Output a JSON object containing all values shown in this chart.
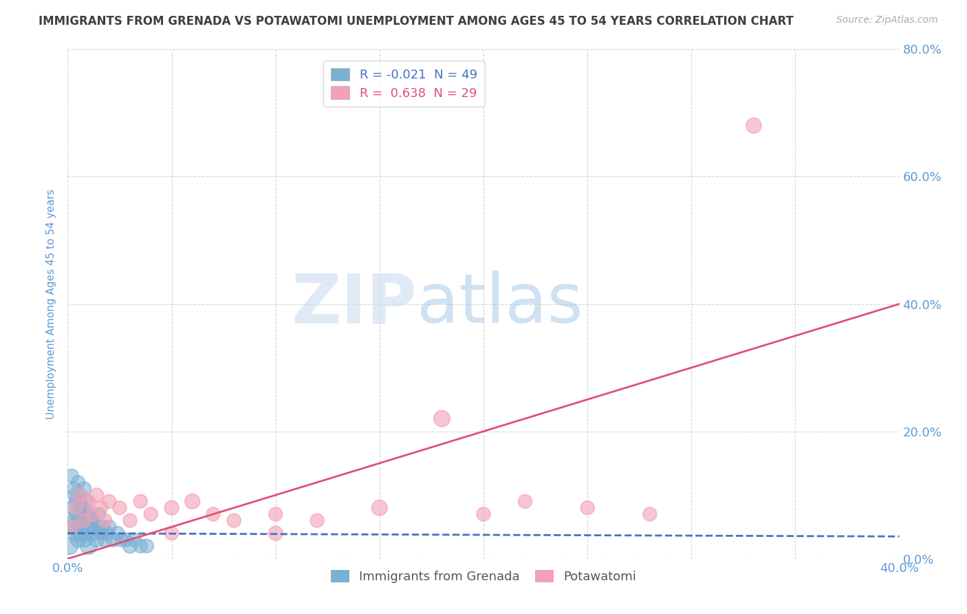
{
  "title": "IMMIGRANTS FROM GRENADA VS POTAWATOMI UNEMPLOYMENT AMONG AGES 45 TO 54 YEARS CORRELATION CHART",
  "source": "Source: ZipAtlas.com",
  "ylabel": "Unemployment Among Ages 45 to 54 years",
  "xlim": [
    0.0,
    0.4
  ],
  "ylim": [
    0.0,
    0.8
  ],
  "xticks": [
    0.0,
    0.05,
    0.1,
    0.15,
    0.2,
    0.25,
    0.3,
    0.35,
    0.4
  ],
  "xtick_labels": [
    "0.0%",
    "",
    "",
    "",
    "",
    "",
    "",
    "",
    "40.0%"
  ],
  "yticks": [
    0.0,
    0.2,
    0.4,
    0.6,
    0.8
  ],
  "grenada_color": "#7bafd4",
  "potawatomi_color": "#f4a0b5",
  "grenada_R": -0.021,
  "grenada_N": 49,
  "potawatomi_R": 0.638,
  "potawatomi_N": 29,
  "grenada_line_color": "#4472c4",
  "potawatomi_line_color": "#e05070",
  "watermark_zip": "ZIP",
  "watermark_atlas": "atlas",
  "background_color": "#ffffff",
  "grid_color": "#cccccc",
  "title_color": "#404040",
  "tick_label_color": "#5b9bd5",
  "grenada_scatter_x": [
    0.001,
    0.002,
    0.002,
    0.003,
    0.003,
    0.004,
    0.004,
    0.005,
    0.005,
    0.006,
    0.006,
    0.007,
    0.007,
    0.008,
    0.008,
    0.009,
    0.009,
    0.01,
    0.01,
    0.011,
    0.012,
    0.013,
    0.014,
    0.015,
    0.016,
    0.017,
    0.018,
    0.019,
    0.02,
    0.022,
    0.024,
    0.026,
    0.028,
    0.03,
    0.032,
    0.035,
    0.038,
    0.002,
    0.003,
    0.004,
    0.005,
    0.006,
    0.007,
    0.008,
    0.009,
    0.01,
    0.012,
    0.014,
    0.016
  ],
  "grenada_scatter_y": [
    0.02,
    0.05,
    0.08,
    0.06,
    0.1,
    0.04,
    0.07,
    0.03,
    0.06,
    0.04,
    0.09,
    0.05,
    0.08,
    0.03,
    0.06,
    0.04,
    0.07,
    0.05,
    0.02,
    0.06,
    0.04,
    0.05,
    0.03,
    0.07,
    0.04,
    0.05,
    0.03,
    0.04,
    0.05,
    0.03,
    0.04,
    0.03,
    0.03,
    0.02,
    0.03,
    0.02,
    0.02,
    0.13,
    0.11,
    0.09,
    0.12,
    0.1,
    0.08,
    0.11,
    0.09,
    0.07,
    0.06,
    0.05,
    0.04
  ],
  "grenada_scatter_sizes": [
    300,
    250,
    180,
    220,
    160,
    280,
    200,
    260,
    190,
    240,
    170,
    210,
    200,
    250,
    180,
    220,
    190,
    200,
    300,
    180,
    220,
    200,
    240,
    190,
    210,
    200,
    230,
    210,
    200,
    220,
    200,
    210,
    200,
    220,
    200,
    200,
    200,
    200,
    200,
    200,
    200,
    200,
    200,
    200,
    200,
    200,
    200,
    200,
    200
  ],
  "potawatomi_scatter_x": [
    0.002,
    0.004,
    0.006,
    0.008,
    0.01,
    0.012,
    0.014,
    0.016,
    0.018,
    0.02,
    0.025,
    0.03,
    0.035,
    0.04,
    0.05,
    0.06,
    0.07,
    0.08,
    0.1,
    0.12,
    0.15,
    0.18,
    0.2,
    0.22,
    0.25,
    0.28,
    0.05,
    0.33,
    0.1
  ],
  "potawatomi_scatter_y": [
    0.05,
    0.08,
    0.1,
    0.06,
    0.09,
    0.07,
    0.1,
    0.08,
    0.06,
    0.09,
    0.08,
    0.06,
    0.09,
    0.07,
    0.08,
    0.09,
    0.07,
    0.06,
    0.04,
    0.06,
    0.08,
    0.22,
    0.07,
    0.09,
    0.08,
    0.07,
    0.04,
    0.68,
    0.07
  ],
  "potawatomi_scatter_sizes": [
    200,
    200,
    200,
    200,
    200,
    200,
    200,
    200,
    200,
    200,
    200,
    200,
    200,
    200,
    220,
    240,
    200,
    200,
    220,
    200,
    260,
    280,
    200,
    200,
    200,
    200,
    200,
    250,
    200
  ],
  "grenada_line_x": [
    0.0,
    0.4
  ],
  "grenada_line_y": [
    0.04,
    0.035
  ],
  "potawatomi_line_x": [
    0.0,
    0.4
  ],
  "potawatomi_line_y": [
    0.0,
    0.4
  ]
}
